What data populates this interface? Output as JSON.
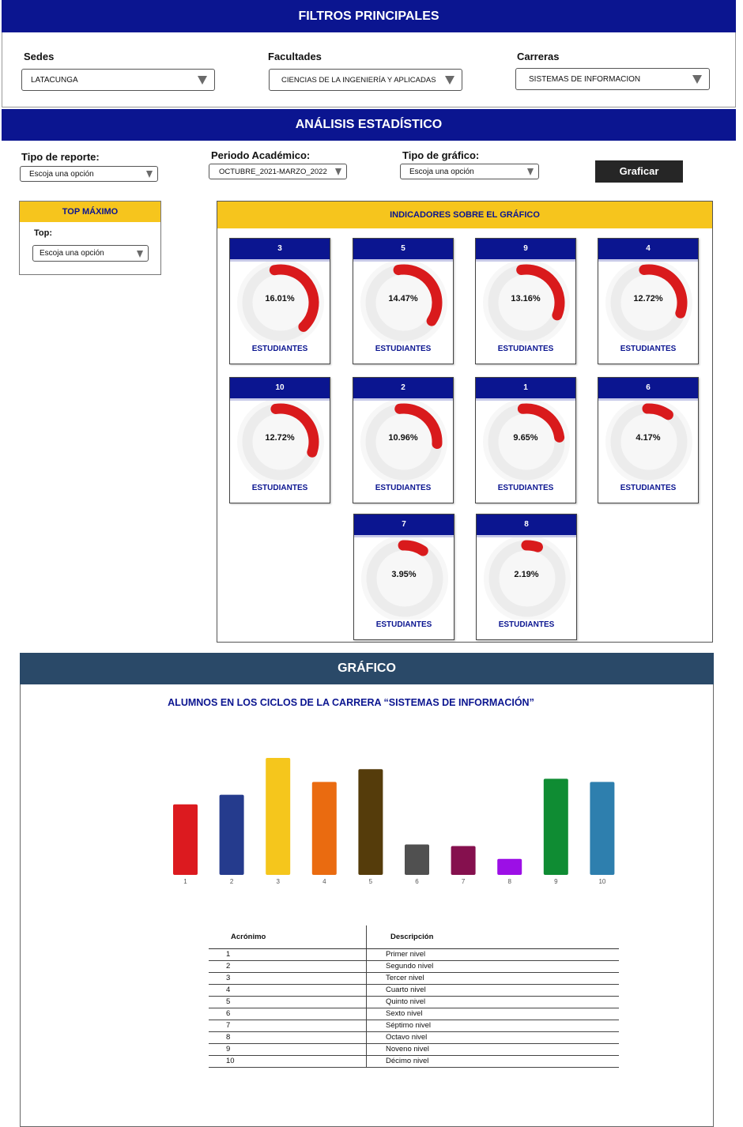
{
  "filtros": {
    "title": "FILTROS PRINCIPALES",
    "sedes": {
      "label": "Sedes",
      "value": "LATACUNGA"
    },
    "facultades": {
      "label": "Facultades",
      "value": "CIENCIAS DE LA INGENIERÍA Y APLICADAS"
    },
    "carreras": {
      "label": "Carreras",
      "value": "SISTEMAS DE INFORMACION"
    }
  },
  "analisis": {
    "title": "ANÁLISIS ESTADÍSTICO",
    "tipo_reporte": {
      "label": "Tipo de reporte:",
      "value": "Escoja una opción"
    },
    "periodo": {
      "label": "Periodo Académico:",
      "value": "OCTUBRE_2021-MARZO_2022"
    },
    "tipo_grafico": {
      "label": "Tipo de gráfico:",
      "value": "Escoja una opción"
    },
    "graficar_label": "Graficar"
  },
  "top_maximo": {
    "title": "TOP MÁXIMO",
    "top_label": "Top:",
    "top_value": "Escoja una opción"
  },
  "indicadores": {
    "title": "INDICADORES SOBRE EL GRÁFICO",
    "footer_label": "ESTUDIANTES",
    "cards": [
      {
        "nivel": "3",
        "percent": "16.01%",
        "fraction": 0.1601
      },
      {
        "nivel": "5",
        "percent": "14.47%",
        "fraction": 0.1447
      },
      {
        "nivel": "9",
        "percent": "13.16%",
        "fraction": 0.1316
      },
      {
        "nivel": "4",
        "percent": "12.72%",
        "fraction": 0.1272
      },
      {
        "nivel": "10",
        "percent": "12.72%",
        "fraction": 0.1272
      },
      {
        "nivel": "2",
        "percent": "10.96%",
        "fraction": 0.1096
      },
      {
        "nivel": "1",
        "percent": "9.65%",
        "fraction": 0.0965
      },
      {
        "nivel": "6",
        "percent": "4.17%",
        "fraction": 0.0417
      },
      {
        "nivel": "7",
        "percent": "3.95%",
        "fraction": 0.0395
      },
      {
        "nivel": "8",
        "percent": "2.19%",
        "fraction": 0.0219
      }
    ]
  },
  "grafico": {
    "header": "GRÁFICO",
    "title": "ALUMNOS EN LOS CICLOS DE LA CARRERA “SISTEMAS DE INFORMACIÓN”"
  },
  "chart_data": {
    "type": "bar",
    "title": "ALUMNOS EN LOS CICLOS DE LA CARRERA “SISTEMAS DE INFORMACIÓN”",
    "xlabel": "",
    "ylabel": "",
    "categories": [
      "1",
      "2",
      "3",
      "4",
      "5",
      "6",
      "7",
      "8",
      "9",
      "10"
    ],
    "values": [
      9.65,
      10.96,
      16.01,
      12.72,
      14.47,
      4.17,
      3.95,
      2.19,
      13.16,
      12.72
    ],
    "colors": [
      "#dc1a1f",
      "#253b8d",
      "#f5c61c",
      "#ea6b10",
      "#553c0b",
      "#505050",
      "#85104e",
      "#9c0fe6",
      "#0f8c33",
      "#2e7fae"
    ],
    "grid": false,
    "legend": "none"
  },
  "tabla": {
    "headers": [
      "Acrónimo",
      "Descripción"
    ],
    "rows": [
      [
        "1",
        "Primer nivel"
      ],
      [
        "2",
        "Segundo nivel"
      ],
      [
        "3",
        "Tercer nivel"
      ],
      [
        "4",
        "Cuarto nivel"
      ],
      [
        "5",
        "Quinto nivel"
      ],
      [
        "6",
        "Sexto nivel"
      ],
      [
        "7",
        "Séptimo nivel"
      ],
      [
        "8",
        "Octavo nivel"
      ],
      [
        "9",
        "Noveno nivel"
      ],
      [
        "10",
        "Décimo nivel"
      ]
    ]
  }
}
